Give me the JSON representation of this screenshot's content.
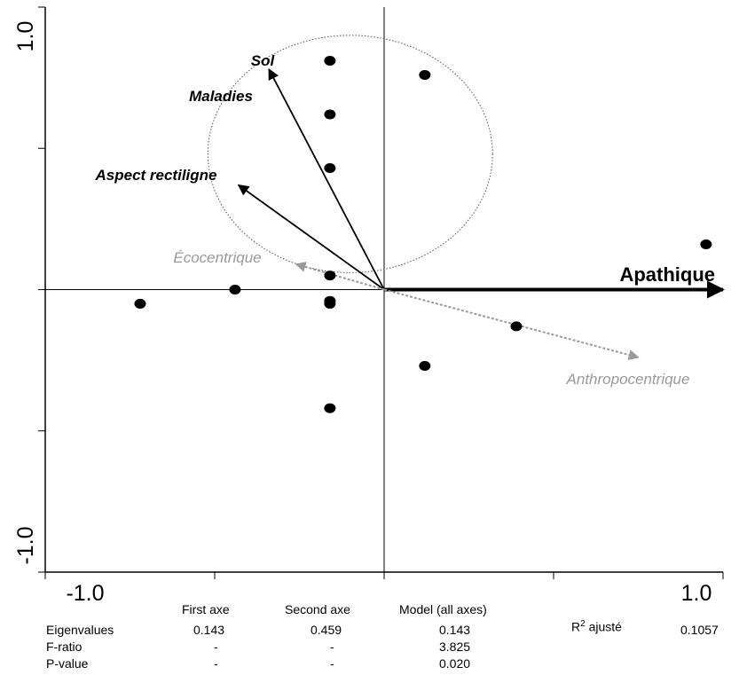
{
  "chart_data": {
    "type": "scatter",
    "subtype": "ordination biplot (RDA/CCA)",
    "xlim": [
      -1.0,
      1.0
    ],
    "ylim": [
      -1.0,
      1.0
    ],
    "x_tick_labels": [
      "-1.0",
      "1.0"
    ],
    "y_tick_labels": [
      "1.0",
      "-1.0"
    ],
    "grid": false,
    "points": [
      {
        "x": -0.72,
        "y": -0.05
      },
      {
        "x": -0.44,
        "y": 0.0
      },
      {
        "x": -0.16,
        "y": 0.81
      },
      {
        "x": -0.16,
        "y": 0.62
      },
      {
        "x": -0.16,
        "y": 0.43
      },
      {
        "x": -0.16,
        "y": 0.05
      },
      {
        "x": -0.16,
        "y": -0.04
      },
      {
        "x": -0.16,
        "y": -0.05
      },
      {
        "x": -0.16,
        "y": -0.42
      },
      {
        "x": 0.12,
        "y": 0.76
      },
      {
        "x": 0.12,
        "y": -0.27
      },
      {
        "x": 0.39,
        "y": -0.13
      },
      {
        "x": 0.95,
        "y": 0.16
      }
    ],
    "vectors": [
      {
        "label": "Sol",
        "x": -0.34,
        "y": 0.78,
        "color": "#000000",
        "style": "solid"
      },
      {
        "label": "Maladies",
        "x": -0.34,
        "y": 0.78,
        "color": "#000000",
        "style": "solid"
      },
      {
        "label": "Aspect rectiligne",
        "x": -0.43,
        "y": 0.37,
        "color": "#000000",
        "style": "solid"
      },
      {
        "label": "Apathique",
        "x": 1.0,
        "y": 0.0,
        "color": "#000000",
        "style": "bold"
      },
      {
        "label": "Écocentrique",
        "x": -0.26,
        "y": 0.09,
        "color": "#9a9a9a",
        "style": "dashed"
      },
      {
        "label": "Anthropocentrique",
        "x": 0.75,
        "y": -0.24,
        "color": "#9a9a9a",
        "style": "dashed"
      }
    ],
    "circle": {
      "cx": -0.1,
      "cy": 0.48,
      "r": 0.42,
      "style": "dotted"
    }
  },
  "stats_table": {
    "columns": [
      "First axe",
      "Second axe",
      "Model (all axes)"
    ],
    "rows": [
      {
        "label": "Eigenvalues",
        "values": [
          "0.143",
          "0.459",
          "0.143"
        ]
      },
      {
        "label": "F-ratio",
        "values": [
          "-",
          "-",
          "3.825"
        ]
      },
      {
        "label": "P-value",
        "values": [
          "-",
          "-",
          "0.020"
        ]
      }
    ],
    "r2_label": "R",
    "r2_sup": "2",
    "r2_suffix": " ajusté",
    "r2_value": "0.1057"
  }
}
